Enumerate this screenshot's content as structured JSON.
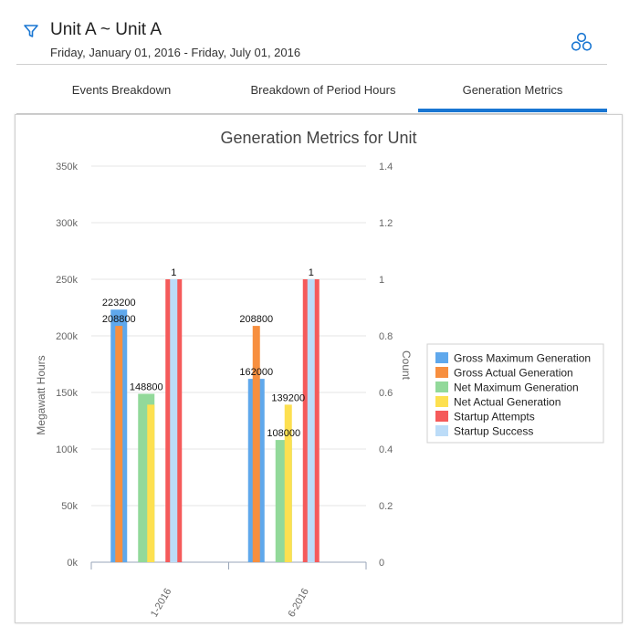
{
  "header": {
    "title": "Unit A ~ Unit A",
    "date_range": "Friday, January 01, 2016 - Friday, July 01, 2016",
    "filter_icon": "filter-icon",
    "share_icon": "share-circles-icon",
    "accent_color": "#1976d2"
  },
  "tabs": [
    {
      "label": "Events Breakdown",
      "active": false
    },
    {
      "label": "Breakdown of Period Hours",
      "active": false
    },
    {
      "label": "Generation Metrics",
      "active": true
    }
  ],
  "chart_data": {
    "type": "bar",
    "title": "Generation Metrics for Unit",
    "ylabel": "Megawatt Hours",
    "y2label": "Count",
    "categories": [
      "1-2016",
      "6-2016"
    ],
    "ylim": [
      0,
      350000
    ],
    "y2lim": [
      0,
      1.4
    ],
    "y_ticks": [
      "0k",
      "50k",
      "100k",
      "150k",
      "200k",
      "250k",
      "300k",
      "350k"
    ],
    "y2_ticks": [
      "0",
      "0.2",
      "0.4",
      "0.6",
      "0.8",
      "1",
      "1.2",
      "1.4"
    ],
    "grid": true,
    "legend_position": "right",
    "series": [
      {
        "name": "Gross Maximum Generation",
        "axis": "left",
        "color": "#5fa8ec",
        "values": [
          223200,
          162000
        ],
        "labels": [
          "223200",
          "162000"
        ]
      },
      {
        "name": "Gross Actual Generation",
        "axis": "left",
        "color": "#f78f3f",
        "values": [
          208800,
          208800
        ],
        "labels": [
          "208800",
          "208800"
        ]
      },
      {
        "name": "Net Maximum Generation",
        "axis": "left",
        "color": "#92d99a",
        "values": [
          148800,
          108000
        ],
        "labels": [
          "148800",
          "108000"
        ]
      },
      {
        "name": "Net Actual Generation",
        "axis": "left",
        "color": "#fde050",
        "values": [
          139200,
          139200
        ],
        "labels": [
          "",
          "139200"
        ]
      },
      {
        "name": "Startup Attempts",
        "axis": "right",
        "color": "#f55a5a",
        "values": [
          1,
          1
        ],
        "labels": [
          "1",
          "1"
        ]
      },
      {
        "name": "Startup Success",
        "axis": "right",
        "color": "#bcdcf8",
        "values": [
          1,
          1
        ],
        "labels": [
          "",
          ""
        ]
      }
    ]
  }
}
